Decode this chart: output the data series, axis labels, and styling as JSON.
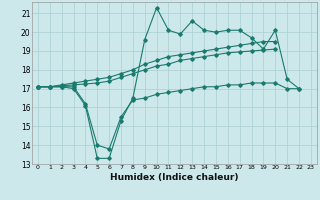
{
  "xlabel": "Humidex (Indice chaleur)",
  "background_color": "#cce8eb",
  "grid_color": "#aacdd2",
  "line_color": "#1a7a6e",
  "xlim": [
    -0.5,
    23.5
  ],
  "ylim": [
    13,
    21.6
  ],
  "yticks": [
    13,
    14,
    15,
    16,
    17,
    18,
    19,
    20,
    21
  ],
  "xticks": [
    0,
    1,
    2,
    3,
    4,
    5,
    6,
    7,
    8,
    9,
    10,
    11,
    12,
    13,
    14,
    15,
    16,
    17,
    18,
    19,
    20,
    21,
    22,
    23
  ],
  "series": [
    {
      "x": [
        0,
        1,
        2,
        3,
        4,
        5,
        6,
        7,
        8,
        9,
        10,
        11,
        12,
        13,
        14,
        15,
        16,
        17,
        18,
        19,
        20,
        21,
        22
      ],
      "y": [
        17.1,
        17.1,
        17.1,
        17.0,
        16.1,
        13.3,
        13.3,
        15.3,
        16.5,
        19.6,
        21.3,
        20.1,
        19.9,
        20.6,
        20.1,
        20.0,
        20.1,
        20.1,
        19.7,
        19.1,
        20.1,
        17.5,
        17.0
      ]
    },
    {
      "x": [
        0,
        1,
        2,
        3,
        4,
        5,
        6,
        7,
        8,
        9,
        10,
        11,
        12,
        13,
        14,
        15,
        16,
        17,
        18,
        19,
        20
      ],
      "y": [
        17.1,
        17.1,
        17.2,
        17.3,
        17.4,
        17.5,
        17.6,
        17.8,
        18.0,
        18.3,
        18.5,
        18.7,
        18.8,
        18.9,
        19.0,
        19.1,
        19.2,
        19.3,
        19.4,
        19.5,
        19.5
      ]
    },
    {
      "x": [
        0,
        1,
        2,
        3,
        4,
        5,
        6,
        7,
        8,
        9,
        10,
        11,
        12,
        13,
        14,
        15,
        16,
        17,
        18,
        19,
        20
      ],
      "y": [
        17.1,
        17.1,
        17.15,
        17.2,
        17.25,
        17.3,
        17.4,
        17.6,
        17.8,
        18.0,
        18.2,
        18.3,
        18.5,
        18.6,
        18.7,
        18.8,
        18.9,
        18.95,
        19.0,
        19.05,
        19.1
      ]
    },
    {
      "x": [
        0,
        1,
        2,
        3,
        4,
        5,
        6,
        7,
        8,
        9,
        10,
        11,
        12,
        13,
        14,
        15,
        16,
        17,
        18,
        19,
        20,
        21,
        22
      ],
      "y": [
        17.1,
        17.1,
        17.1,
        17.1,
        16.2,
        14.0,
        13.8,
        15.5,
        16.4,
        16.5,
        16.7,
        16.8,
        16.9,
        17.0,
        17.1,
        17.1,
        17.2,
        17.2,
        17.3,
        17.3,
        17.3,
        17.0,
        17.0
      ]
    }
  ]
}
